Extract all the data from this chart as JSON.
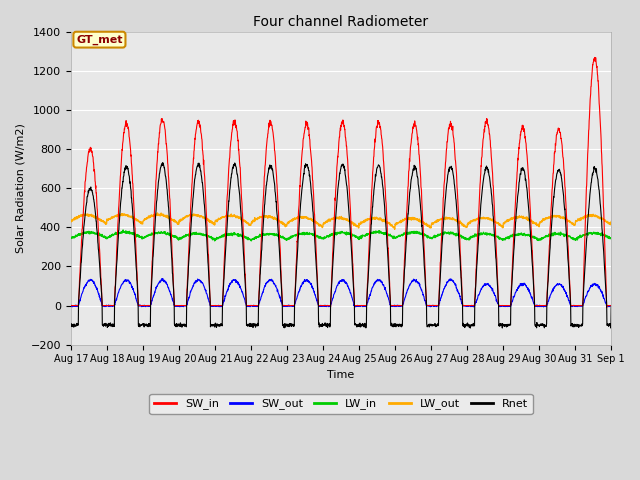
{
  "title": "Four channel Radiometer",
  "xlabel": "Time",
  "ylabel": "Solar Radiation (W/m2)",
  "ylim": [
    -200,
    1400
  ],
  "fig_bg": "#d9d9d9",
  "plot_bg": "#e8e8e8",
  "annotation_label": "GT_met",
  "annotation_bg": "#ffffcc",
  "annotation_border": "#cc8800",
  "tick_labels": [
    "Aug 17",
    "Aug 18",
    "Aug 19",
    "Aug 20",
    "Aug 21",
    "Aug 22",
    "Aug 23",
    "Aug 24",
    "Aug 25",
    "Aug 26",
    "Aug 27",
    "Aug 28",
    "Aug 29",
    "Aug 30",
    "Aug 31",
    "Sep 1"
  ],
  "num_days": 15,
  "SW_in_peak": [
    800,
    930,
    950,
    940,
    940,
    935,
    930,
    940,
    935,
    930,
    930,
    940,
    910,
    900,
    1265
  ],
  "SW_out_peak": [
    130,
    130,
    130,
    130,
    130,
    130,
    130,
    130,
    130,
    130,
    130,
    110,
    110,
    110,
    110
  ],
  "LW_in_base": 340,
  "LW_in_amp": 30,
  "LW_out_base": 415,
  "LW_out_amp": 40,
  "Rnet_peak": [
    600,
    710,
    725,
    720,
    720,
    715,
    720,
    720,
    715,
    710,
    710,
    705,
    700,
    695,
    700
  ],
  "Rnet_night": -100,
  "colors": {
    "SW_in": "#ff0000",
    "SW_out": "#0000ff",
    "LW_in": "#00cc00",
    "LW_out": "#ffaa00",
    "Rnet": "#000000"
  },
  "legend_labels": [
    "SW_in",
    "SW_out",
    "LW_in",
    "LW_out",
    "Rnet"
  ],
  "title_fontsize": 10,
  "axis_label_fontsize": 8,
  "tick_fontsize": 7
}
